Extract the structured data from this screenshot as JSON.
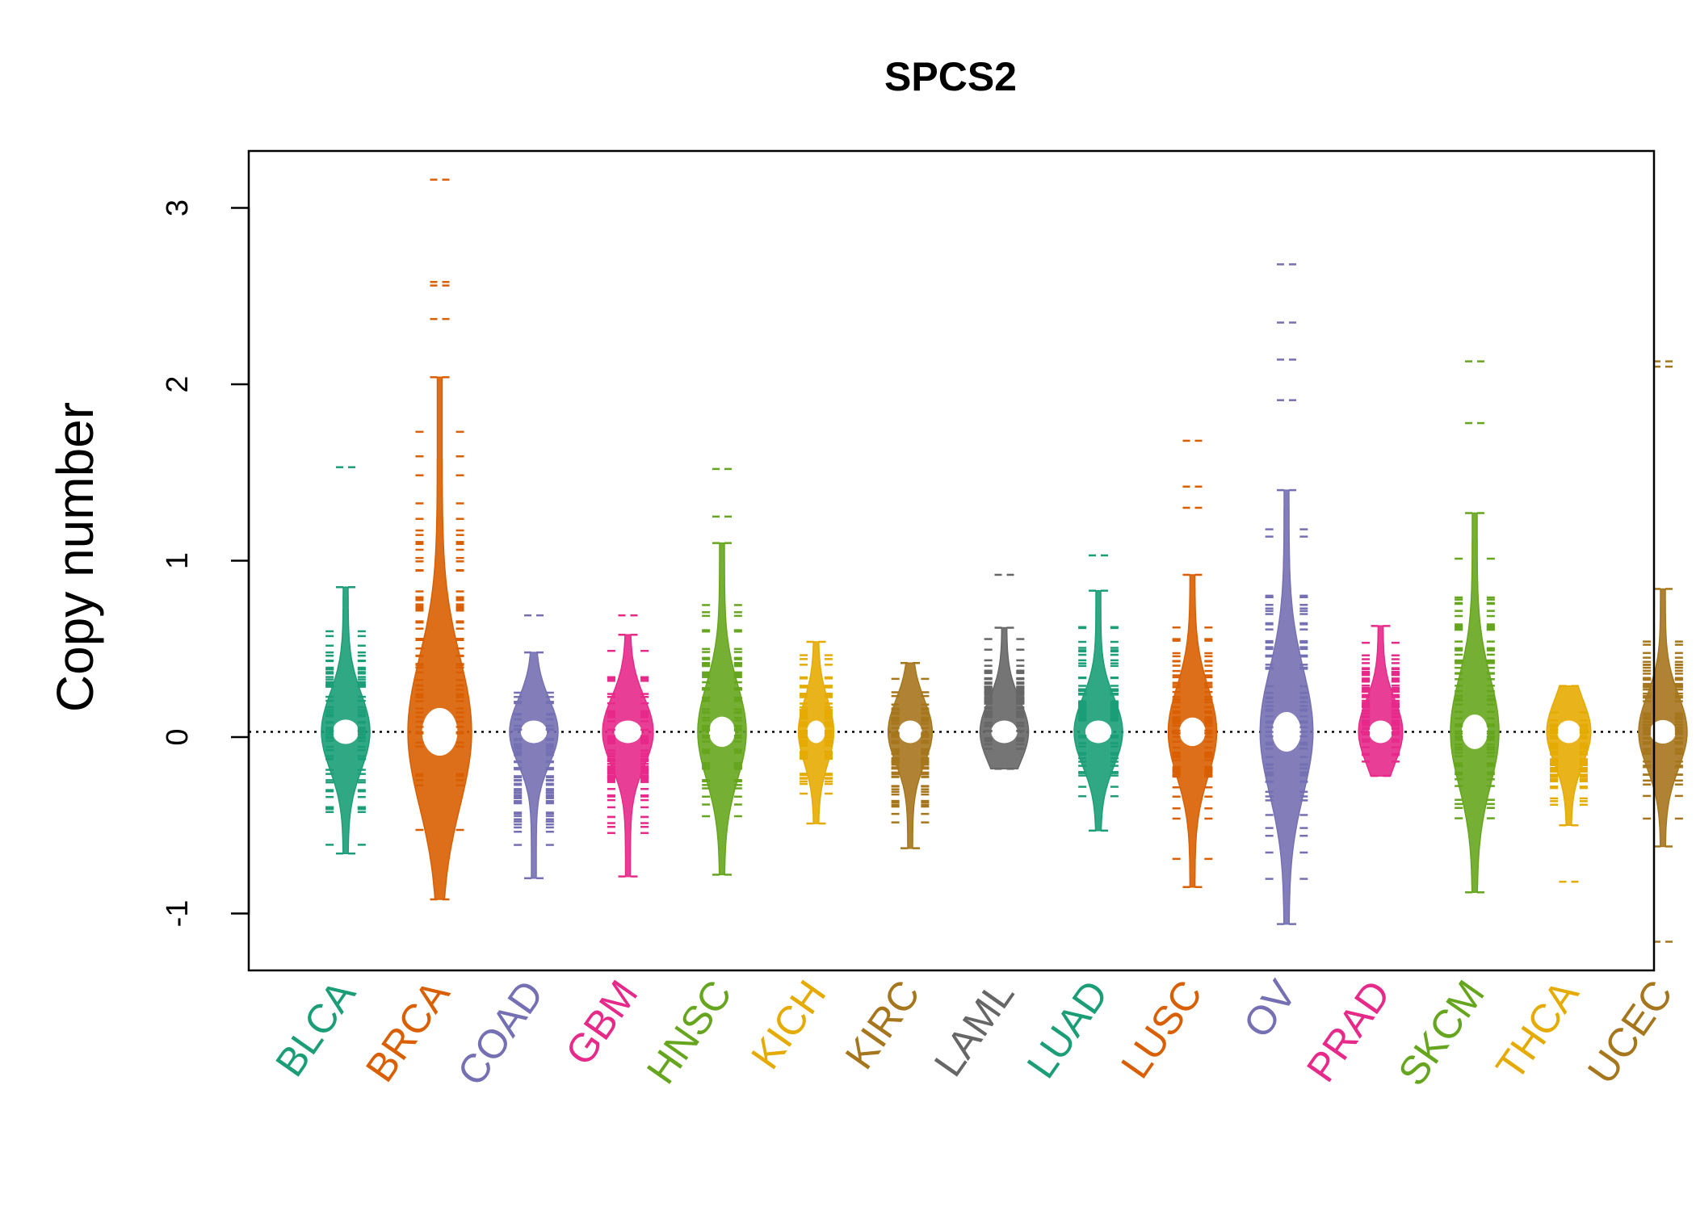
{
  "chart_data": {
    "type": "beanplot",
    "title": "SPCS2",
    "xlabel": "",
    "ylabel": "Copy number",
    "ylim": [
      -1.3,
      3.3
    ],
    "yticks": [
      -1,
      0,
      1,
      2,
      3
    ],
    "ytick_labels": [
      "-1",
      "0",
      "1",
      "2",
      "3"
    ],
    "reference_line": 0.03,
    "categories": [
      "BLCA",
      "BRCA",
      "COAD",
      "GBM",
      "HNSC",
      "KICH",
      "KIRC",
      "LAML",
      "LUAD",
      "LUSC",
      "OV",
      "PRAD",
      "SKCM",
      "THCA",
      "UCEC"
    ],
    "series": [
      {
        "category": "BLCA",
        "color": "#1b9e77",
        "min": -0.66,
        "max": 0.85,
        "outliers": [
          1.53
        ],
        "scale": 1.0
      },
      {
        "category": "BRCA",
        "color": "#d95f02",
        "min": -0.92,
        "max": 2.04,
        "outliers": [
          2.37,
          2.56,
          2.58,
          3.16
        ],
        "scale": 1.35
      },
      {
        "category": "COAD",
        "color": "#7570b3",
        "min": -0.8,
        "max": 0.48,
        "outliers": [
          0.69
        ],
        "scale": 1.0
      },
      {
        "category": "GBM",
        "color": "#e7298a",
        "min": -0.79,
        "max": 0.58,
        "outliers": [
          0.69
        ],
        "scale": 1.05
      },
      {
        "category": "HNSC",
        "color": "#66a61e",
        "min": -0.78,
        "max": 1.1,
        "outliers": [
          1.25,
          1.52
        ],
        "scale": 1.0
      },
      {
        "category": "KICH",
        "color": "#e6ab02",
        "min": -0.49,
        "max": 0.54,
        "outliers": [],
        "scale": 0.7
      },
      {
        "category": "KIRC",
        "color": "#a6761d",
        "min": -0.63,
        "max": 0.42,
        "outliers": [],
        "scale": 0.9
      },
      {
        "category": "LAML",
        "color": "#666666",
        "min": -0.18,
        "max": 0.62,
        "outliers": [
          0.92
        ],
        "scale": 1.0
      },
      {
        "category": "LUAD",
        "color": "#1b9e77",
        "min": -0.53,
        "max": 0.83,
        "outliers": [
          1.03
        ],
        "scale": 1.0
      },
      {
        "category": "LUSC",
        "color": "#d95f02",
        "min": -0.85,
        "max": 0.92,
        "outliers": [
          1.3,
          1.42,
          1.68
        ],
        "scale": 1.0
      },
      {
        "category": "OV",
        "color": "#7570b3",
        "min": -1.06,
        "max": 1.4,
        "outliers": [
          1.91,
          2.14,
          2.35,
          2.68
        ],
        "scale": 1.1
      },
      {
        "category": "PRAD",
        "color": "#e7298a",
        "min": -0.22,
        "max": 0.63,
        "outliers": [],
        "scale": 0.9
      },
      {
        "category": "SKCM",
        "color": "#66a61e",
        "min": -0.88,
        "max": 1.27,
        "outliers": [
          1.78,
          2.13
        ],
        "scale": 1.0
      },
      {
        "category": "THCA",
        "color": "#e6ab02",
        "min": -0.5,
        "max": 0.29,
        "outliers": [
          -0.82
        ],
        "scale": 0.9
      },
      {
        "category": "UCEC",
        "color": "#a6761d",
        "min": -0.62,
        "max": 0.84,
        "outliers": [
          2.1,
          2.13,
          -1.16
        ],
        "scale": 1.0
      }
    ]
  }
}
